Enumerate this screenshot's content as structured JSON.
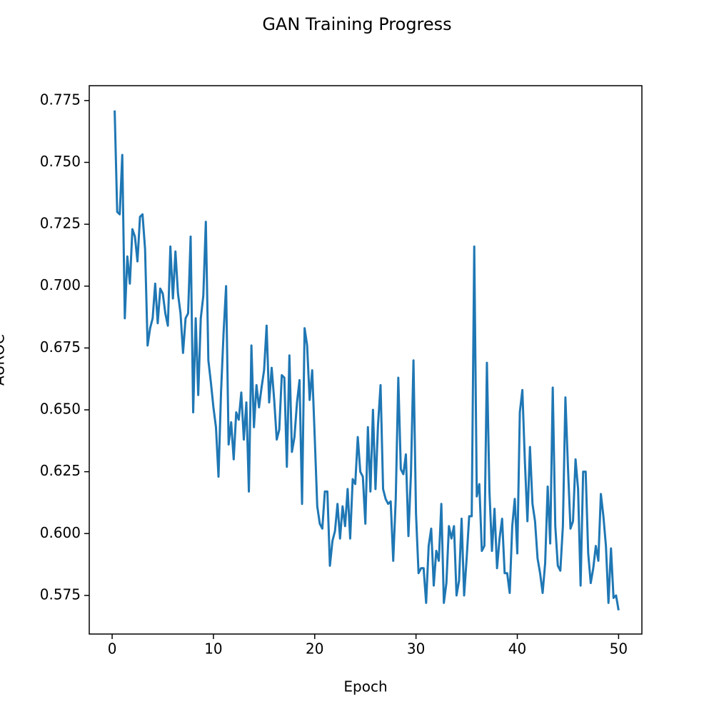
{
  "chart_data": {
    "type": "line",
    "title": "GAN Training Progress",
    "x_label": "Epoch",
    "y_label": "AUROC",
    "color": "#1f77b4",
    "x": [
      0.25,
      0.5,
      0.75,
      1,
      1.25,
      1.5,
      1.75,
      2,
      2.25,
      2.5,
      2.75,
      3,
      3.25,
      3.5,
      3.75,
      4,
      4.25,
      4.5,
      4.75,
      5,
      5.25,
      5.5,
      5.75,
      6,
      6.25,
      6.5,
      6.75,
      7,
      7.25,
      7.5,
      7.75,
      8,
      8.25,
      8.5,
      8.75,
      9,
      9.25,
      9.5,
      9.75,
      10,
      10.25,
      10.5,
      10.75,
      11,
      11.25,
      11.5,
      11.75,
      12,
      12.25,
      12.5,
      12.75,
      13,
      13.25,
      13.5,
      13.75,
      14,
      14.25,
      14.5,
      14.75,
      15,
      15.25,
      15.5,
      15.75,
      16,
      16.25,
      16.5,
      16.75,
      17,
      17.25,
      17.5,
      17.75,
      18,
      18.25,
      18.5,
      18.75,
      19,
      19.25,
      19.5,
      19.75,
      20,
      20.25,
      20.5,
      20.75,
      21,
      21.25,
      21.5,
      21.75,
      22,
      22.25,
      22.5,
      22.75,
      23,
      23.25,
      23.5,
      23.75,
      24,
      24.25,
      24.5,
      24.75,
      25,
      25.25,
      25.5,
      25.75,
      26,
      26.25,
      26.5,
      26.75,
      27,
      27.25,
      27.5,
      27.75,
      28,
      28.25,
      28.5,
      28.75,
      29,
      29.25,
      29.5,
      29.75,
      30,
      30.25,
      30.5,
      30.75,
      31,
      31.25,
      31.5,
      31.75,
      32,
      32.25,
      32.5,
      32.75,
      33,
      33.25,
      33.5,
      33.75,
      34,
      34.25,
      34.5,
      34.75,
      35,
      35.25,
      35.5,
      35.75,
      36,
      36.25,
      36.5,
      36.75,
      37,
      37.25,
      37.5,
      37.75,
      38,
      38.25,
      38.5,
      38.75,
      39,
      39.25,
      39.5,
      39.75,
      40,
      40.25,
      40.5,
      40.75,
      41,
      41.25,
      41.5,
      41.75,
      42,
      42.25,
      42.5,
      42.75,
      43,
      43.25,
      43.5,
      43.75,
      44,
      44.25,
      44.5,
      44.75,
      45,
      45.25,
      45.5,
      45.75,
      46,
      46.25,
      46.5,
      46.75,
      47,
      47.25,
      47.5,
      47.75,
      48,
      48.25,
      48.5,
      48.75,
      49,
      49.25,
      49.5,
      49.75,
      50
    ],
    "values": [
      0.771,
      0.73,
      0.729,
      0.753,
      0.687,
      0.712,
      0.701,
      0.723,
      0.72,
      0.71,
      0.728,
      0.729,
      0.715,
      0.676,
      0.683,
      0.687,
      0.701,
      0.685,
      0.699,
      0.697,
      0.689,
      0.684,
      0.716,
      0.695,
      0.714,
      0.697,
      0.689,
      0.673,
      0.687,
      0.689,
      0.72,
      0.649,
      0.687,
      0.656,
      0.687,
      0.696,
      0.726,
      0.67,
      0.661,
      0.651,
      0.643,
      0.623,
      0.657,
      0.681,
      0.7,
      0.636,
      0.645,
      0.63,
      0.649,
      0.646,
      0.657,
      0.638,
      0.653,
      0.617,
      0.676,
      0.643,
      0.66,
      0.651,
      0.659,
      0.666,
      0.684,
      0.653,
      0.667,
      0.654,
      0.638,
      0.642,
      0.664,
      0.663,
      0.627,
      0.672,
      0.633,
      0.639,
      0.653,
      0.662,
      0.612,
      0.683,
      0.676,
      0.654,
      0.666,
      0.639,
      0.611,
      0.604,
      0.602,
      0.617,
      0.617,
      0.587,
      0.597,
      0.601,
      0.612,
      0.598,
      0.611,
      0.603,
      0.618,
      0.598,
      0.622,
      0.62,
      0.639,
      0.625,
      0.623,
      0.604,
      0.643,
      0.617,
      0.65,
      0.618,
      0.644,
      0.66,
      0.618,
      0.614,
      0.612,
      0.613,
      0.589,
      0.614,
      0.663,
      0.626,
      0.624,
      0.632,
      0.599,
      0.624,
      0.67,
      0.608,
      0.584,
      0.586,
      0.586,
      0.572,
      0.595,
      0.602,
      0.579,
      0.593,
      0.589,
      0.612,
      0.572,
      0.58,
      0.603,
      0.598,
      0.603,
      0.575,
      0.581,
      0.606,
      0.575,
      0.59,
      0.607,
      0.607,
      0.716,
      0.615,
      0.62,
      0.593,
      0.595,
      0.669,
      0.617,
      0.593,
      0.61,
      0.586,
      0.598,
      0.606,
      0.584,
      0.584,
      0.576,
      0.603,
      0.614,
      0.592,
      0.649,
      0.658,
      0.629,
      0.605,
      0.635,
      0.612,
      0.605,
      0.59,
      0.584,
      0.576,
      0.588,
      0.619,
      0.596,
      0.659,
      0.603,
      0.587,
      0.585,
      0.603,
      0.655,
      0.627,
      0.602,
      0.605,
      0.63,
      0.618,
      0.579,
      0.625,
      0.625,
      0.592,
      0.58,
      0.586,
      0.595,
      0.589,
      0.616,
      0.607,
      0.595,
      0.572,
      0.594,
      0.574,
      0.575,
      0.569
    ],
    "xlim": [
      -2.26,
      52.3
    ],
    "ylim": [
      0.5594,
      0.781
    ],
    "xticks": [
      0,
      10,
      20,
      30,
      40,
      50
    ],
    "yticks": [
      0.575,
      {
        "value": 0.6,
        "label": "0.600"
      },
      0.625,
      {
        "value": 0.65,
        "label": "0.650"
      },
      0.675,
      {
        "value": 0.7,
        "label": "0.700"
      },
      0.725,
      {
        "value": 0.75,
        "label": "0.750"
      },
      0.775
    ]
  }
}
